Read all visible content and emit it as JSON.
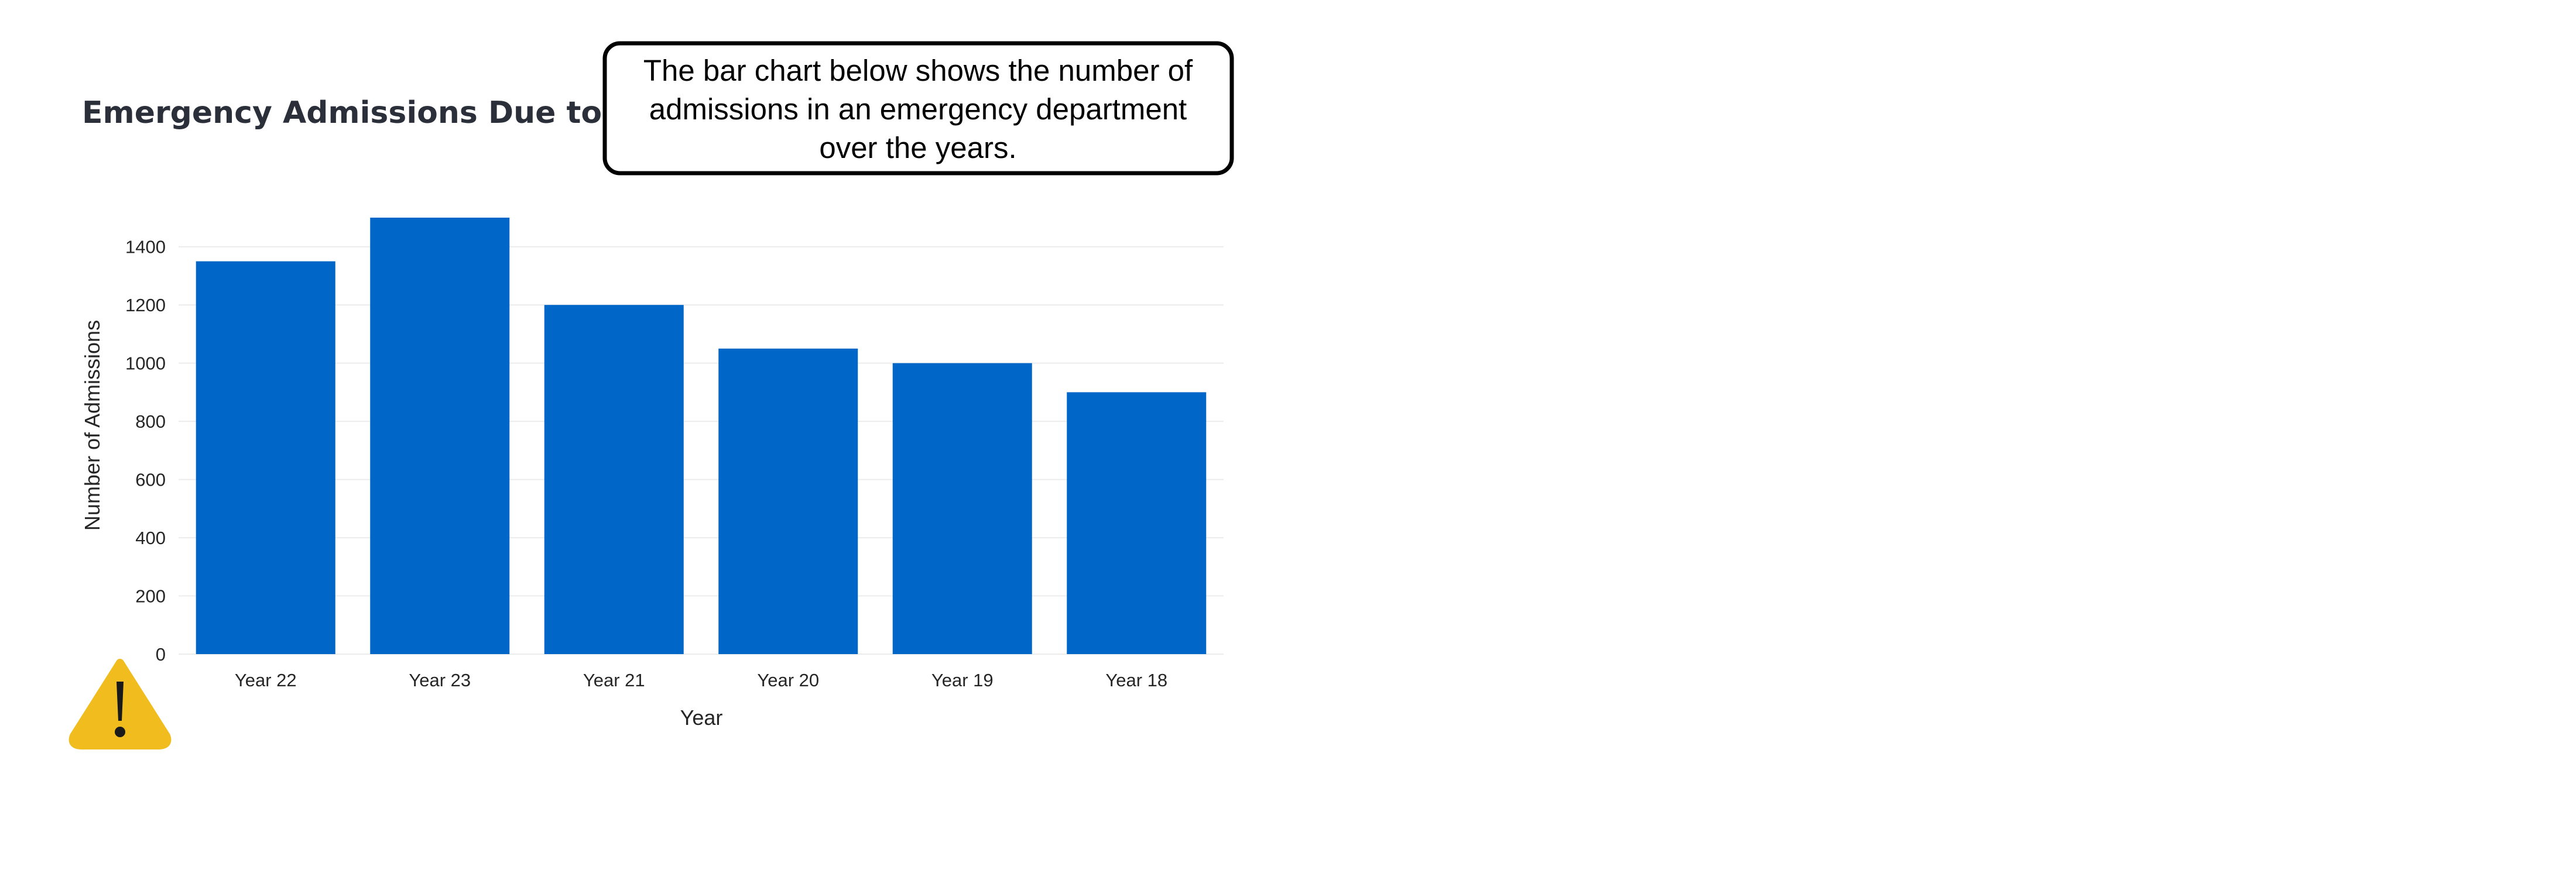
{
  "title": "Emergency Admissions Due to Flu",
  "callout": {
    "lines": [
      "The bar chart below shows the number of",
      "admissions in an emergency department",
      "over the years."
    ]
  },
  "icon": "warning-icon",
  "colors": {
    "bar": "#0066c8",
    "warning": "#f0bc1e",
    "title": "#2b2f3a"
  },
  "chart_data": {
    "type": "bar",
    "categories": [
      "Year 22",
      "Year 23",
      "Year 21",
      "Year 20",
      "Year 19",
      "Year 18"
    ],
    "values": [
      1350,
      1500,
      1200,
      1050,
      1000,
      900
    ],
    "title": "Emergency Admissions Due to Flu",
    "xlabel": "Year",
    "ylabel": "Number of Admissions",
    "ylim": [
      0,
      1500
    ],
    "yticks": [
      0,
      200,
      400,
      600,
      800,
      1000,
      1200,
      1400
    ],
    "grid": true,
    "legend": "none"
  }
}
